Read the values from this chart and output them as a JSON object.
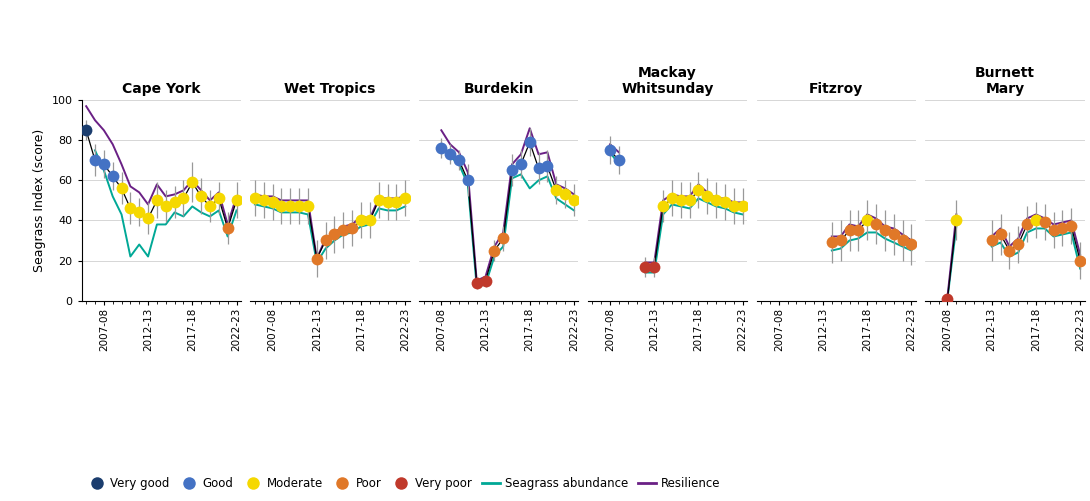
{
  "regions": [
    "Cape York",
    "Wet Tropics",
    "Burdekin",
    "Mackay\nWhitsunday",
    "Fitzroy",
    "Burnett\nMary"
  ],
  "n_years": 18,
  "xtick_labels": [
    "2007-08",
    "2012-13",
    "2017-18",
    "2022-23"
  ],
  "xtick_positions": [
    2,
    7,
    12,
    17
  ],
  "score_data": {
    "Cape York": [
      85,
      70,
      68,
      62,
      56,
      46,
      44,
      41,
      50,
      47,
      49,
      51,
      59,
      52,
      47,
      51,
      36,
      50
    ],
    "Wet Tropics": [
      51,
      50,
      49,
      47,
      47,
      47,
      47,
      21,
      30,
      33,
      35,
      36,
      40,
      40,
      50,
      49,
      49,
      51
    ],
    "Burdekin": [
      null,
      null,
      76,
      73,
      70,
      60,
      9,
      10,
      25,
      31,
      65,
      68,
      79,
      66,
      67,
      55,
      53,
      50
    ],
    "Mackay\nWhitsunday": [
      null,
      null,
      75,
      70,
      null,
      null,
      17,
      17,
      47,
      51,
      50,
      50,
      55,
      52,
      50,
      49,
      47,
      47
    ],
    "Fitzroy": [
      null,
      null,
      null,
      null,
      null,
      null,
      null,
      null,
      29,
      30,
      35,
      35,
      40,
      38,
      35,
      33,
      30,
      28
    ],
    "Burnett\nMary": [
      null,
      null,
      1,
      40,
      null,
      null,
      null,
      30,
      33,
      25,
      28,
      38,
      40,
      39,
      35,
      36,
      37,
      20
    ]
  },
  "score_error": {
    "Cape York": [
      5,
      8,
      7,
      7,
      8,
      8,
      7,
      8,
      9,
      8,
      8,
      9,
      10,
      9,
      8,
      8,
      8,
      9
    ],
    "Wet Tropics": [
      9,
      9,
      9,
      9,
      9,
      9,
      9,
      9,
      9,
      9,
      9,
      9,
      9,
      9,
      9,
      9,
      9,
      9
    ],
    "Burdekin": [
      null,
      null,
      5,
      5,
      5,
      8,
      3,
      3,
      5,
      6,
      8,
      7,
      7,
      8,
      8,
      7,
      7,
      8
    ],
    "Mackay\nWhitsunday": [
      null,
      null,
      7,
      7,
      null,
      null,
      5,
      5,
      8,
      9,
      9,
      9,
      9,
      9,
      9,
      9,
      9,
      9
    ],
    "Fitzroy": [
      null,
      null,
      null,
      null,
      null,
      null,
      null,
      null,
      10,
      10,
      10,
      10,
      10,
      10,
      10,
      10,
      10,
      10
    ],
    "Burnett\nMary": [
      null,
      null,
      2,
      10,
      null,
      null,
      null,
      10,
      10,
      9,
      9,
      9,
      9,
      9,
      9,
      9,
      9,
      9
    ]
  },
  "abundance_data": {
    "Cape York": [
      null,
      75,
      65,
      52,
      43,
      22,
      28,
      22,
      38,
      38,
      44,
      42,
      47,
      44,
      42,
      45,
      32,
      45
    ],
    "Wet Tropics": [
      48,
      47,
      46,
      44,
      44,
      44,
      43,
      19,
      26,
      30,
      33,
      34,
      37,
      38,
      46,
      45,
      45,
      47
    ],
    "Burdekin": [
      null,
      null,
      78,
      72,
      68,
      58,
      7,
      8,
      22,
      27,
      61,
      63,
      56,
      60,
      62,
      51,
      48,
      45
    ],
    "Mackay\nWhitsunday": [
      null,
      null,
      74,
      68,
      null,
      null,
      14,
      14,
      43,
      48,
      47,
      46,
      51,
      49,
      47,
      46,
      44,
      43
    ],
    "Fitzroy": [
      null,
      null,
      null,
      null,
      null,
      null,
      null,
      null,
      25,
      26,
      30,
      31,
      34,
      34,
      31,
      29,
      27,
      25
    ],
    "Burnett\nMary": [
      null,
      null,
      1,
      37,
      null,
      null,
      null,
      27,
      29,
      22,
      24,
      34,
      36,
      36,
      32,
      33,
      34,
      16
    ]
  },
  "resilience_data": {
    "Cape York": [
      97,
      90,
      85,
      78,
      68,
      57,
      54,
      48,
      58,
      52,
      53,
      55,
      60,
      55,
      50,
      54,
      38,
      52
    ],
    "Wet Tropics": [
      53,
      52,
      52,
      50,
      50,
      50,
      50,
      21,
      31,
      34,
      37,
      38,
      42,
      41,
      51,
      51,
      51,
      52
    ],
    "Burdekin": [
      null,
      null,
      85,
      78,
      74,
      64,
      10,
      12,
      27,
      34,
      68,
      73,
      86,
      73,
      74,
      58,
      56,
      53
    ],
    "Mackay\nWhitsunday": [
      null,
      null,
      78,
      74,
      null,
      null,
      19,
      19,
      50,
      53,
      52,
      52,
      58,
      54,
      51,
      51,
      49,
      49
    ],
    "Fitzroy": [
      null,
      null,
      null,
      null,
      null,
      null,
      null,
      null,
      32,
      32,
      38,
      37,
      43,
      41,
      37,
      36,
      33,
      30
    ],
    "Burnett\nMary": [
      null,
      null,
      2,
      43,
      null,
      null,
      null,
      32,
      36,
      27,
      31,
      41,
      43,
      41,
      38,
      39,
      40,
      23
    ]
  },
  "grade_colors": {
    "Very good": "#1b3d6e",
    "Good": "#4472c4",
    "Moderate": "#f5d800",
    "Poor": "#e07828",
    "Very poor": "#c0392b"
  },
  "abundance_color": "#00a896",
  "resilience_color": "#6a2085",
  "bg_color": "#ffffff",
  "grid_color": "#d0d0d0",
  "ylabel": "Seagrass Index (score)",
  "ylim": [
    0,
    100
  ],
  "yticks": [
    0,
    20,
    40,
    60,
    80,
    100
  ]
}
